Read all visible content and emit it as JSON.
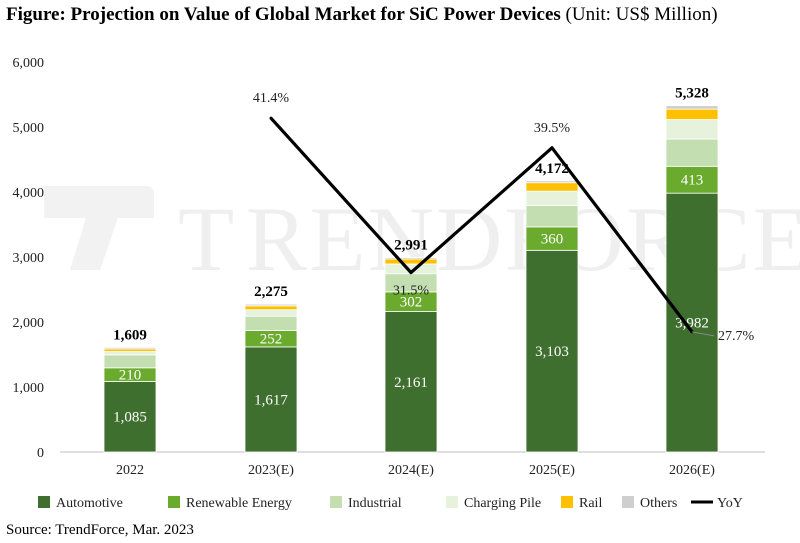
{
  "figure": {
    "title_bold": "Figure: Projection on Value of Global Market for SiC Power Devices",
    "title_unit": "(Unit: US$ Million)",
    "source": "Source: TrendForce, Mar. 2023",
    "watermark": "TRENDFORCE"
  },
  "chart_data": {
    "type": "bar",
    "stacked": true,
    "categories": [
      "2022",
      "2023(E)",
      "2024(E)",
      "2025(E)",
      "2026(E)"
    ],
    "ylim": [
      0,
      6000
    ],
    "yticks": [
      0,
      1000,
      2000,
      3000,
      4000,
      5000,
      6000
    ],
    "ytick_labels": [
      "0",
      "1,000",
      "2,000",
      "3,000",
      "4,000",
      "5,000",
      "6,000"
    ],
    "series": [
      {
        "name": "Automotive",
        "color": "#3f6f2f",
        "values": [
          1085,
          1617,
          2161,
          3103,
          3982
        ],
        "labels": [
          "1,085",
          "1,617",
          "2,161",
          "3,103",
          "3,982"
        ]
      },
      {
        "name": "Renewable Energy",
        "color": "#6aab2e",
        "values": [
          210,
          252,
          302,
          360,
          413
        ],
        "labels": [
          "210",
          "252",
          "302",
          "360",
          "413"
        ]
      },
      {
        "name": "Industrial",
        "color": "#c3dfb1",
        "values": [
          200,
          220,
          280,
          330,
          420
        ],
        "labels": []
      },
      {
        "name": "Charging Pile",
        "color": "#e6f2dc",
        "values": [
          50,
          100,
          150,
          220,
          300
        ],
        "labels": []
      },
      {
        "name": "Rail",
        "color": "#ffc000",
        "values": [
          40,
          60,
          75,
          130,
          160
        ],
        "labels": []
      },
      {
        "name": "Others",
        "color": "#cfcfcf",
        "values": [
          24,
          26,
          23,
          29,
          53
        ],
        "labels": []
      }
    ],
    "totals": [
      1609,
      2275,
      2991,
      4172,
      5328
    ],
    "total_labels": [
      "1,609",
      "2,275",
      "2,991",
      "4,172",
      "5,328"
    ],
    "yoy": {
      "name": "YoY",
      "color": "#000000",
      "categories": [
        "2023(E)",
        "2024(E)",
        "2025(E)",
        "2026(E)"
      ],
      "values": [
        41.4,
        31.5,
        39.5,
        27.7
      ],
      "labels": [
        "41.4%",
        "31.5%",
        "39.5%",
        "27.7%"
      ]
    },
    "legend": {
      "position": "bottom",
      "items": [
        {
          "name": "Automotive",
          "color": "#3f6f2f",
          "kind": "box"
        },
        {
          "name": "Renewable Energy",
          "color": "#6aab2e",
          "kind": "box"
        },
        {
          "name": "Industrial",
          "color": "#c3dfb1",
          "kind": "box"
        },
        {
          "name": "Charging Pile",
          "color": "#e6f2dc",
          "kind": "box"
        },
        {
          "name": "Rail",
          "color": "#ffc000",
          "kind": "box"
        },
        {
          "name": "Others",
          "color": "#cfcfcf",
          "kind": "box"
        },
        {
          "name": "YoY",
          "color": "#000000",
          "kind": "line"
        }
      ]
    }
  }
}
